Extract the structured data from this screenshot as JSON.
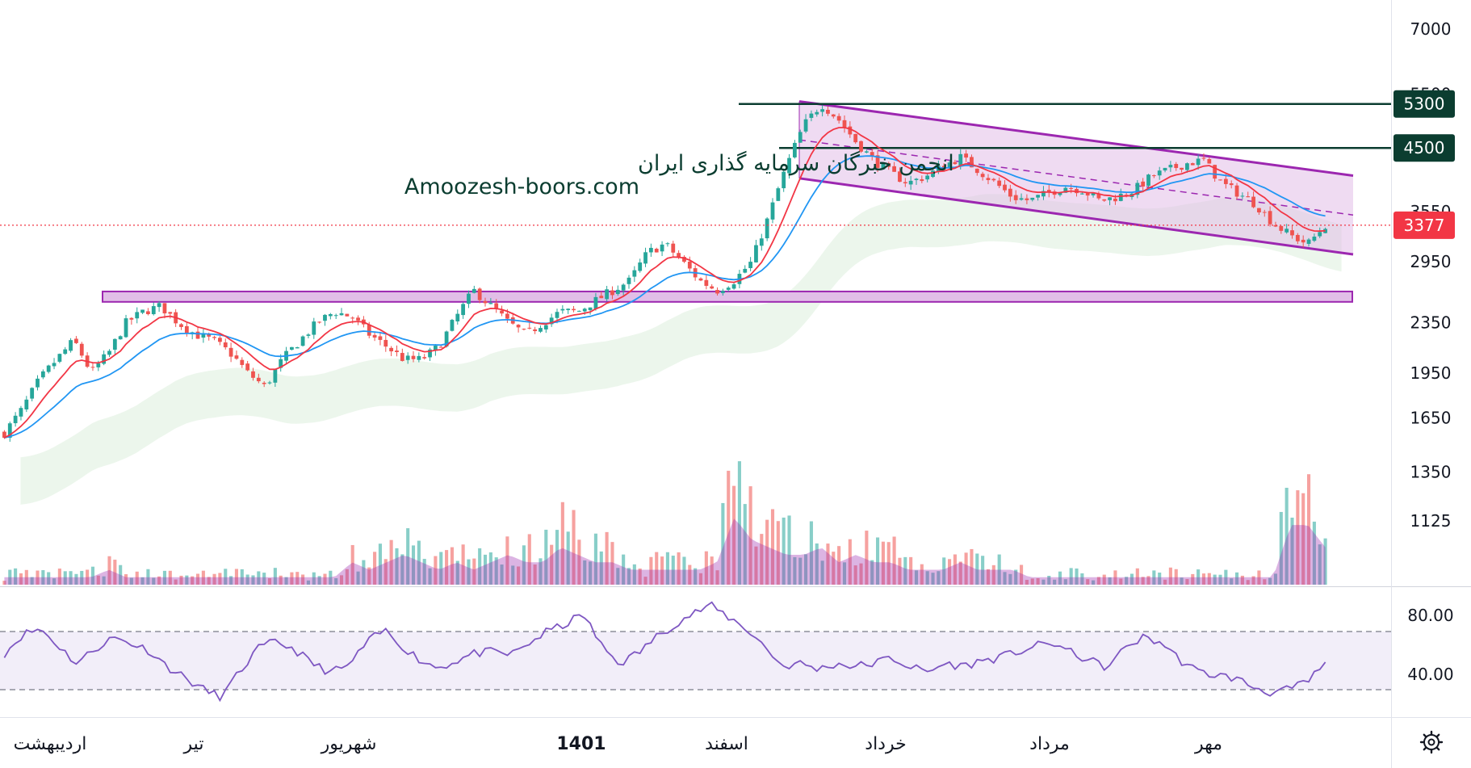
{
  "watermark": {
    "line1": "انجمن خبرگان سرمایه گذاری ایران",
    "line2": "Amoozesh-boors.com"
  },
  "colors": {
    "up": "#26a69a",
    "down": "#ef5350",
    "ema_fast": "#f23645",
    "ema_slow": "#2196f3",
    "channel": "#9c27b0",
    "channel_fill": "#e1bee7",
    "level_line": "#0b3d30",
    "rsi_line": "#7e57c2",
    "current_price": "#f23645"
  },
  "chart_data": [
    {
      "type": "candlestick",
      "title": "",
      "y_scale": "log",
      "price_axis_ticks": [
        "7000",
        "5500",
        "4500",
        "3550",
        "2950",
        "2350",
        "1950",
        "1650",
        "1350",
        "1125"
      ],
      "time_axis_ticks": [
        "اردیبهشت",
        "تیر",
        "شهریور",
        "1401",
        "اسفند",
        "خرداد",
        "مرداد",
        "مهر"
      ],
      "levels": [
        {
          "label": "5300",
          "value": 5300
        },
        {
          "label": "4500",
          "value": 4500
        }
      ],
      "current_price": {
        "label": "3377",
        "value": 3377
      },
      "support_zone": {
        "low": 2540,
        "high": 2640
      },
      "descending_channel": {
        "upper": [
          5350,
          4060
        ],
        "lower": [
          4020,
          3030
        ],
        "x_range": [
          "اسفند",
          "مهر"
        ]
      },
      "close_series_approx": [
        1560,
        1700,
        1900,
        2050,
        2200,
        1950,
        2100,
        2350,
        2450,
        2500,
        2350,
        2250,
        2200,
        2100,
        1950,
        1850,
        2050,
        2200,
        2350,
        2450,
        2400,
        2250,
        2150,
        2050,
        2050,
        2150,
        2400,
        2650,
        2500,
        2350,
        2250,
        2350,
        2450,
        2450,
        2550,
        2650,
        2750,
        3050,
        3150,
        2950,
        2750,
        2650,
        2750,
        2950,
        3500,
        4200,
        4900,
        5300,
        5000,
        4600,
        4300,
        4100,
        3950,
        4050,
        4200,
        4350,
        4150,
        3950,
        3750,
        3700,
        3800,
        3900,
        3850,
        3700,
        3750,
        3850,
        4050,
        4150,
        4250,
        4300,
        3950,
        3800,
        3650,
        3400,
        3250,
        3150,
        3377
      ],
      "volume_series_approx": [
        1,
        1,
        1,
        1,
        1,
        1,
        2,
        1,
        1,
        1,
        1,
        1,
        1,
        1,
        1,
        1,
        1,
        1,
        1,
        1,
        3,
        2,
        3,
        4,
        3,
        2,
        3,
        2,
        3,
        4,
        3,
        3,
        5,
        4,
        3,
        3,
        2,
        2,
        2,
        2,
        2,
        3,
        9,
        6,
        5,
        4,
        4,
        5,
        3,
        4,
        3,
        3,
        2,
        2,
        2,
        3,
        2,
        2,
        2,
        1,
        1,
        1,
        1,
        1,
        1,
        1,
        1,
        1,
        1,
        1,
        1,
        1,
        1,
        1,
        8,
        8,
        5
      ],
      "rsi": {
        "ticks": [
          "80.00",
          "40.00"
        ],
        "overbought": 70,
        "oversold": 30,
        "values_approx": [
          55,
          68,
          72,
          60,
          48,
          58,
          66,
          62,
          57,
          46,
          38,
          30,
          25,
          42,
          58,
          63,
          58,
          48,
          42,
          46,
          62,
          71,
          60,
          50,
          45,
          50,
          55,
          56,
          54,
          62,
          70,
          75,
          82,
          60,
          48,
          55,
          66,
          75,
          82,
          88,
          80,
          72,
          60,
          46,
          48,
          44,
          48,
          46,
          48,
          52,
          46,
          42,
          48,
          46,
          50,
          52,
          56,
          60,
          62,
          55,
          50,
          45,
          60,
          66,
          62,
          50,
          42,
          40,
          38,
          32,
          28,
          30,
          35,
          48
        ]
      }
    }
  ]
}
